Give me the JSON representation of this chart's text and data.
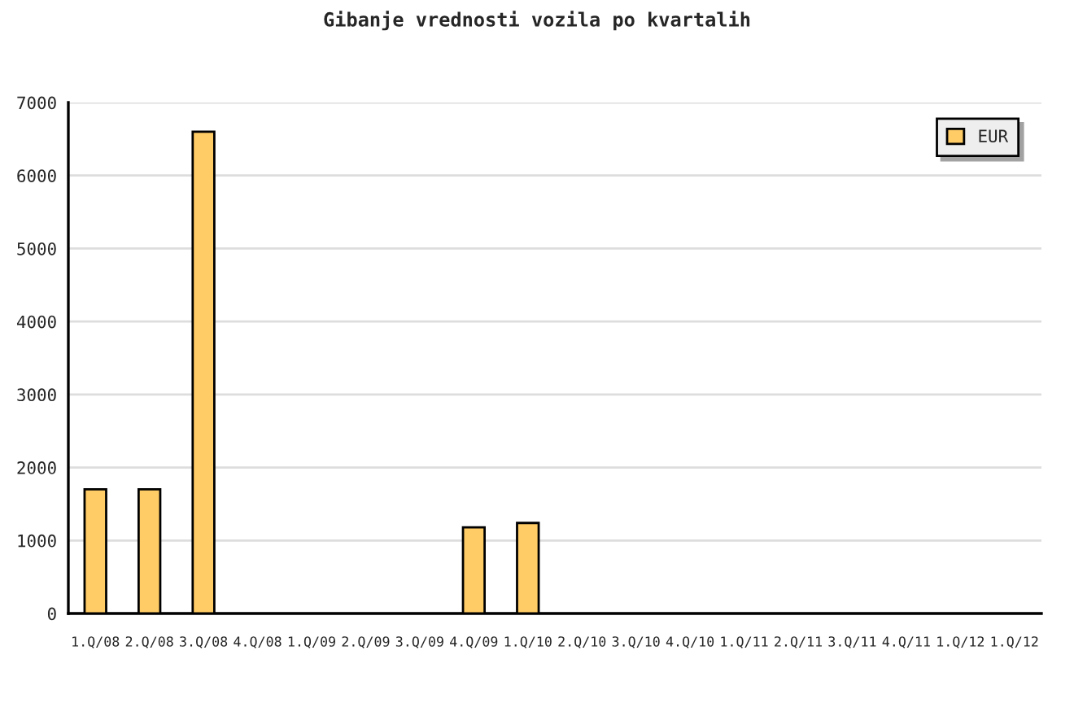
{
  "chart_data": {
    "type": "bar",
    "title": "Gibanje vrednosti vozila po kvartalih",
    "categories": [
      "1.Q/08",
      "2.Q/08",
      "3.Q/08",
      "4.Q/08",
      "1.Q/09",
      "2.Q/09",
      "3.Q/09",
      "4.Q/09",
      "1.Q/10",
      "2.Q/10",
      "3.Q/10",
      "4.Q/10",
      "1.Q/11",
      "2.Q/11",
      "3.Q/11",
      "4.Q/11",
      "1.Q/12",
      "1.Q/12"
    ],
    "series": [
      {
        "name": "EUR",
        "color": "#ffcc66",
        "values": [
          1700,
          1700,
          6600,
          null,
          null,
          null,
          null,
          1180,
          1240,
          null,
          null,
          null,
          null,
          null,
          null,
          null,
          null,
          null
        ]
      }
    ],
    "ylim": [
      0,
      7000
    ],
    "yticks": [
      0,
      1000,
      2000,
      3000,
      4000,
      5000,
      6000,
      7000
    ],
    "grid": "y",
    "legend": "top right"
  }
}
